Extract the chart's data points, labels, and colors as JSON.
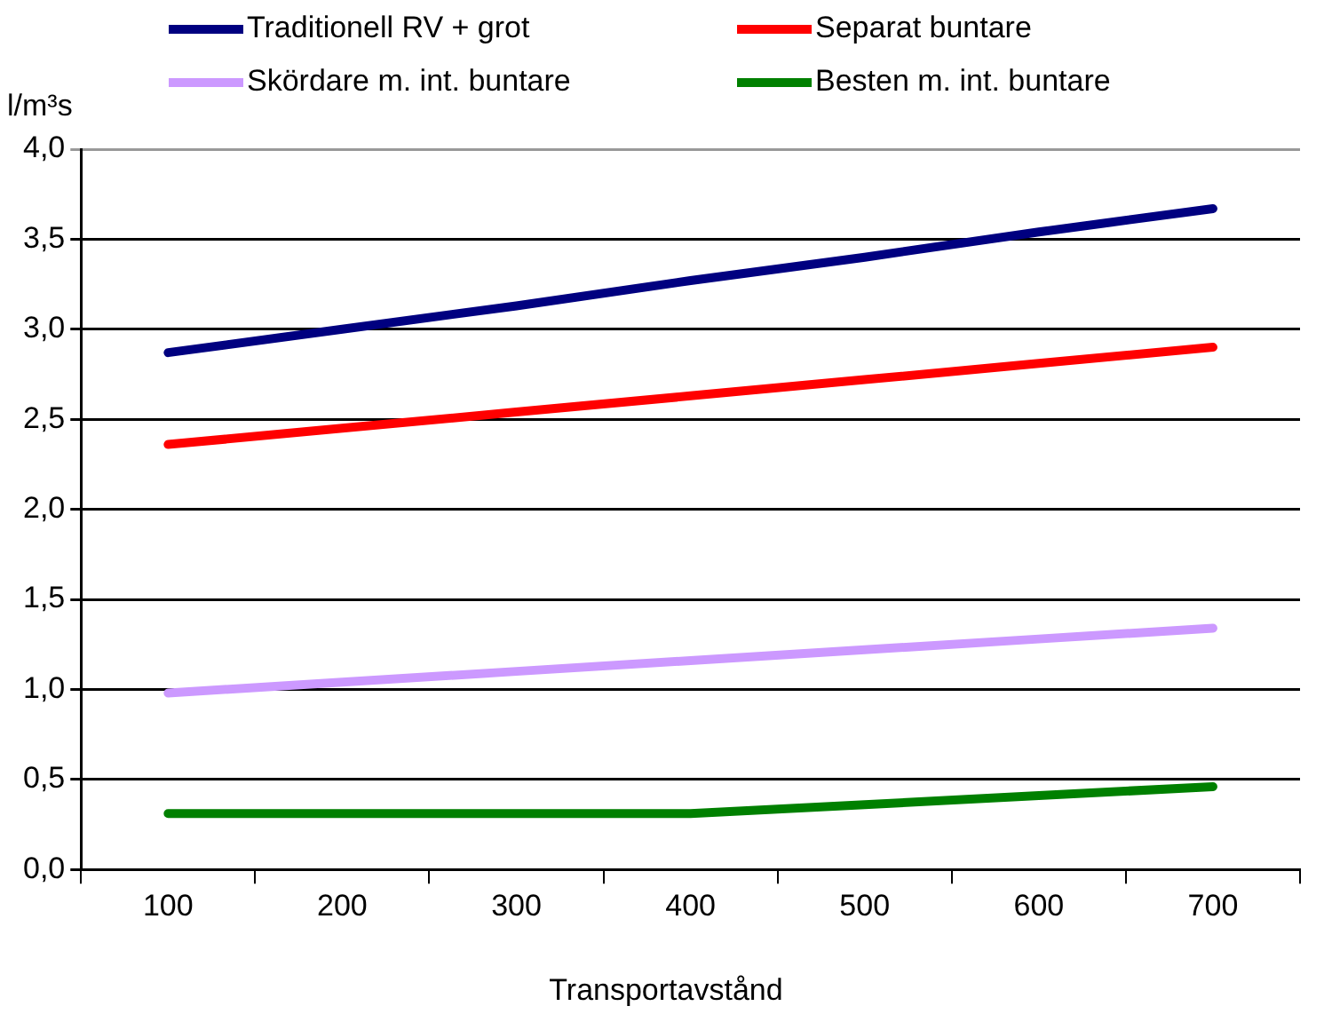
{
  "chart_data": {
    "type": "line",
    "xlabel": "Transportavstånd",
    "ylabel": "l/m³s",
    "categories": [
      "100",
      "200",
      "300",
      "400",
      "500",
      "600",
      "700"
    ],
    "series": [
      {
        "name": "Traditionell RV + grot",
        "color": "#000080",
        "values": [
          2.87,
          3.0,
          3.13,
          3.27,
          3.4,
          3.54,
          3.67
        ]
      },
      {
        "name": "Separat buntare",
        "color": "#ff0000",
        "values": [
          2.36,
          2.45,
          2.54,
          2.63,
          2.72,
          2.81,
          2.9
        ]
      },
      {
        "name": "Skördare m. int. buntare",
        "color": "#cc99ff",
        "values": [
          0.98,
          1.04,
          1.1,
          1.16,
          1.22,
          1.28,
          1.34
        ]
      },
      {
        "name": "Besten m. int. buntare",
        "color": "#008000",
        "values": [
          0.31,
          0.31,
          0.31,
          0.31,
          0.36,
          0.41,
          0.46
        ]
      }
    ],
    "ylim": [
      0,
      4
    ],
    "yticks": [
      {
        "value": 0,
        "label": "0,0"
      },
      {
        "value": 0.5,
        "label": "0,5"
      },
      {
        "value": 1,
        "label": "1,0"
      },
      {
        "value": 1.5,
        "label": "1,5"
      },
      {
        "value": 2,
        "label": "2,0"
      },
      {
        "value": 2.5,
        "label": "2,5"
      },
      {
        "value": 3,
        "label": "3,0"
      },
      {
        "value": 3.5,
        "label": "3,5"
      },
      {
        "value": 4,
        "label": "4,0"
      }
    ],
    "grid": "y",
    "legend": "top",
    "marker": "none",
    "line_style": "solid"
  }
}
